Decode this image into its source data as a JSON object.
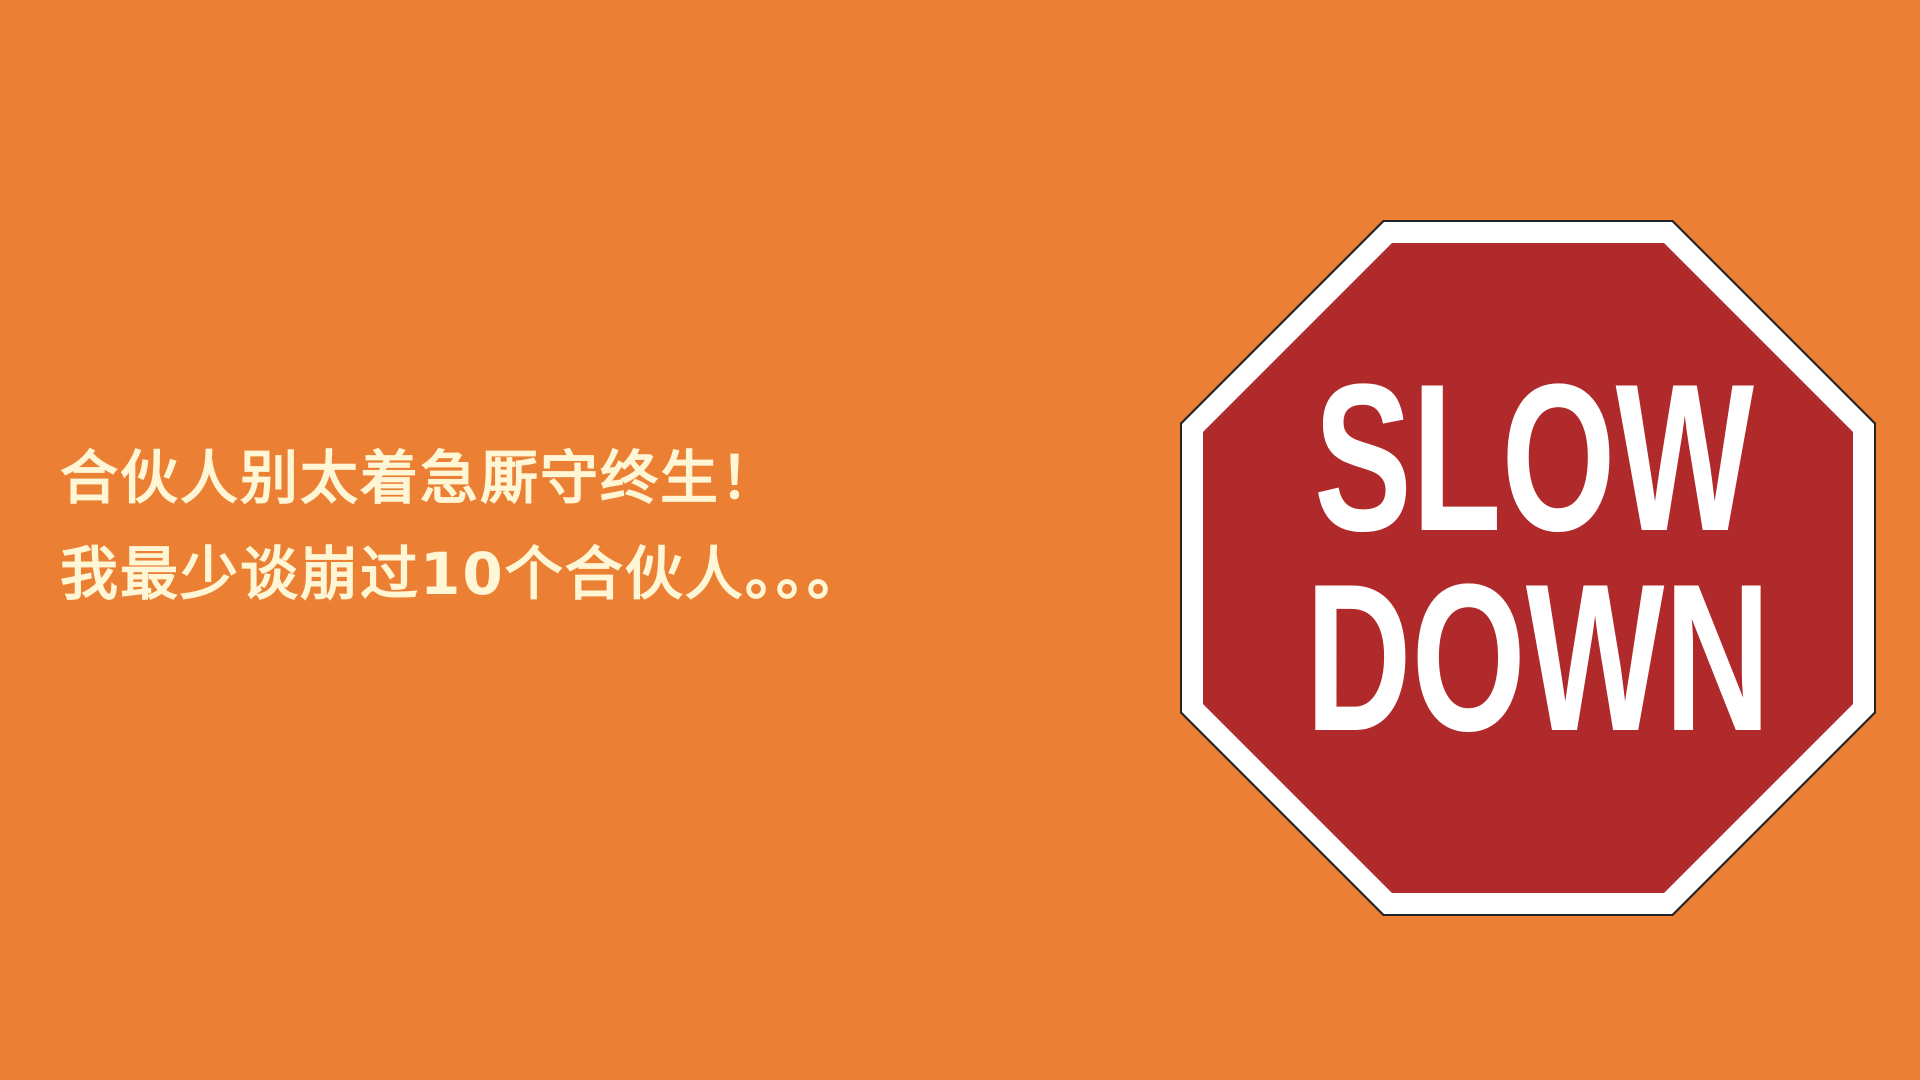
{
  "slide": {
    "background_color": "#EB8035",
    "headline": {
      "line1": "合伙人别太着急厮守终生！",
      "line2": "我最少谈崩过10个合伙人。。。",
      "color": "#FFF6D5"
    },
    "sign": {
      "line1": "SLOW",
      "line2": "DOWN",
      "fill_color": "#B0292B",
      "border_color": "#FFFFFF",
      "text_color": "#FFFFFF"
    }
  }
}
